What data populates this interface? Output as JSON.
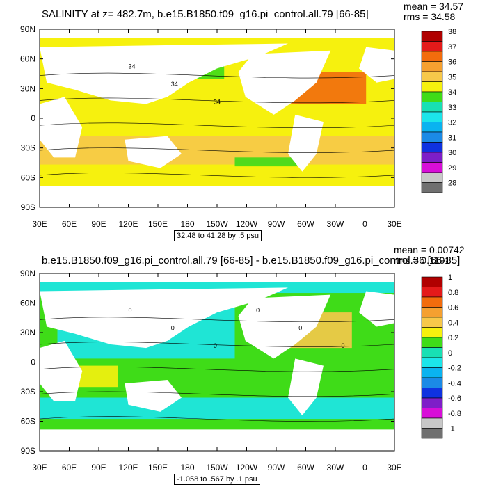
{
  "panel1": {
    "title": "SALINITY at z= 482.7m, b.e15.B1850.f09_g16.pi_control.all.79 [66-85]",
    "mean_label": "mean = 34.57",
    "rms_label": "rms = 34.58",
    "info": "32.48 to 41.28 by .5 psu",
    "contour_labels": [
      "34",
      "34",
      "34"
    ],
    "colorbar": {
      "labels": [
        "38",
        "37",
        "36",
        "35",
        "34",
        "33",
        "32",
        "31",
        "30",
        "29",
        "28"
      ],
      "colors": [
        "#b00000",
        "#e41a1a",
        "#f26c0d",
        "#f5a030",
        "#f7c84a",
        "#f6f10e",
        "#3fdc18",
        "#18e0b4",
        "#1ce5ea",
        "#0ab3f0",
        "#1b8ae6",
        "#0f32e0",
        "#7e1ec8",
        "#d80ed8",
        "#c8c8c8",
        "#707070"
      ]
    }
  },
  "panel2": {
    "title": "b.e15.B1850.f09_g16.pi_control.all.79 [66-85] - b.e15.B1850.f09_g16.pi_control.36 [66-85]",
    "mean_label": "mean = 0.00742",
    "rms_label": "rms = 0.1101",
    "info": "-1.058 to .567 by .1 psu",
    "contour_labels": [
      "0",
      "0",
      "0",
      "0",
      "0",
      "0"
    ],
    "colorbar": {
      "labels": [
        "1",
        "0.8",
        "0.6",
        "0.4",
        "0.2",
        "0",
        "-0.2",
        "-0.4",
        "-0.6",
        "-0.8",
        "-1"
      ],
      "colors": [
        "#b00000",
        "#e41a1a",
        "#f26c0d",
        "#f5a030",
        "#f7c84a",
        "#f6f10e",
        "#3fdc18",
        "#18e0b4",
        "#1ce5ea",
        "#0ab3f0",
        "#1b8ae6",
        "#0f32e0",
        "#7e1ec8",
        "#d80ed8",
        "#c8c8c8",
        "#707070"
      ]
    }
  },
  "axes": {
    "lat_ticks": [
      "90N",
      "60N",
      "30N",
      "0",
      "30S",
      "60S",
      "90S"
    ],
    "lon_ticks": [
      "30E",
      "60E",
      "90E",
      "120E",
      "150E",
      "180",
      "150W",
      "120W",
      "90W",
      "60W",
      "30W",
      "0",
      "30E"
    ]
  }
}
